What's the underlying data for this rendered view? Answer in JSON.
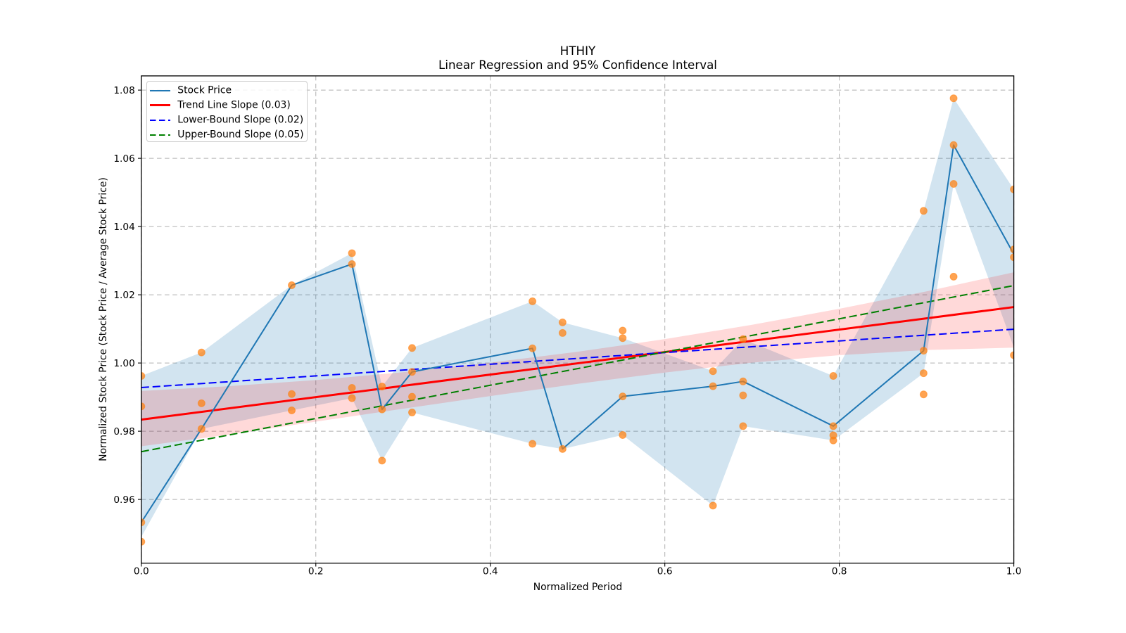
{
  "chart_data": {
    "type": "line",
    "title": "HTHIY",
    "subtitle": "Linear Regression and 95% Confidence Interval",
    "xlabel": "Normalized Period",
    "ylabel": "Normalized Stock Price (Stock Price / Average Stock Price)",
    "xlim": [
      0.0,
      1.0
    ],
    "ylim": [
      0.94132,
      1.08417
    ],
    "xticks": [
      "0.0",
      "0.2",
      "0.4",
      "0.6",
      "0.8",
      "1.0"
    ],
    "xtick_values": [
      0.0,
      0.2,
      0.4,
      0.6,
      0.8,
      1.0
    ],
    "yticks": [
      "0.96",
      "0.98",
      "1.00",
      "1.02",
      "1.04",
      "1.06",
      "1.08"
    ],
    "ytick_values": [
      0.96,
      0.98,
      1.0,
      1.02,
      1.04,
      1.06,
      1.08
    ],
    "grid": true,
    "grid_color": "#b0b0b0",
    "legend_position": "upper left",
    "x": [
      0.0,
      0.069,
      0.1724,
      0.2414,
      0.2759,
      0.3103,
      0.4483,
      0.4828,
      0.5517,
      0.6552,
      0.6897,
      0.7931,
      0.8966,
      0.931,
      1.0
    ],
    "series": [
      {
        "name": "Stock Price",
        "style": "solid",
        "color": "#1f77b4",
        "linewidth": 2,
        "y": [
          0.9533,
          0.9807,
          1.0228,
          1.029,
          0.9864,
          0.9974,
          1.0043,
          0.9748,
          0.9902,
          0.9932,
          0.9946,
          0.9815,
          1.0036,
          1.0639,
          1.0319
        ]
      },
      {
        "name": "Trend Line Slope (0.03)",
        "style": "solid",
        "color": "#ff0000",
        "linewidth": 3,
        "x2": [
          0.0,
          1.0
        ],
        "y2": [
          0.9834,
          1.0164
        ]
      },
      {
        "name": "Lower-Bound Slope (0.02)",
        "style": "dashed",
        "color": "#0000ff",
        "linewidth": 2,
        "x2": [
          0.0,
          1.0
        ],
        "y2": [
          0.9928,
          1.0099
        ]
      },
      {
        "name": "Upper-Bound Slope (0.05)",
        "style": "dashed",
        "color": "#008000",
        "linewidth": 2,
        "x2": [
          0.0,
          1.0
        ],
        "y2": [
          0.974,
          1.0227
        ]
      }
    ],
    "scatter": {
      "color": "#ff7f0e",
      "alpha": 0.72,
      "radius": 5.5,
      "points": [
        [
          0.0,
          0.9962
        ],
        [
          0.0,
          0.9873
        ],
        [
          0.0,
          0.9533
        ],
        [
          0.0,
          0.9476
        ],
        [
          0.069,
          1.0031
        ],
        [
          0.069,
          0.9882
        ],
        [
          0.069,
          0.9807
        ],
        [
          0.1724,
          1.0228
        ],
        [
          0.1724,
          0.9909
        ],
        [
          0.1724,
          0.9861
        ],
        [
          0.2414,
          1.0322
        ],
        [
          0.2414,
          1.029
        ],
        [
          0.2414,
          0.9927
        ],
        [
          0.2414,
          0.9897
        ],
        [
          0.2759,
          0.9931
        ],
        [
          0.2759,
          0.9864
        ],
        [
          0.2759,
          0.9714
        ],
        [
          0.3103,
          1.0044
        ],
        [
          0.3103,
          0.9974
        ],
        [
          0.3103,
          0.9901
        ],
        [
          0.3103,
          0.9855
        ],
        [
          0.4483,
          1.0181
        ],
        [
          0.4483,
          1.0043
        ],
        [
          0.4483,
          0.9763
        ],
        [
          0.4828,
          1.0119
        ],
        [
          0.4828,
          1.0088
        ],
        [
          0.4828,
          0.9748
        ],
        [
          0.5517,
          1.0095
        ],
        [
          0.5517,
          1.0073
        ],
        [
          0.5517,
          0.9902
        ],
        [
          0.5517,
          0.9789
        ],
        [
          0.6552,
          0.9976
        ],
        [
          0.6552,
          0.9932
        ],
        [
          0.6552,
          0.9582
        ],
        [
          0.6897,
          1.007
        ],
        [
          0.6897,
          0.9946
        ],
        [
          0.6897,
          0.9905
        ],
        [
          0.6897,
          0.9815
        ],
        [
          0.7931,
          0.9962
        ],
        [
          0.7931,
          0.9815
        ],
        [
          0.7931,
          0.9788
        ],
        [
          0.7931,
          0.9773
        ],
        [
          0.8966,
          1.0446
        ],
        [
          0.8966,
          1.0036
        ],
        [
          0.8966,
          0.997
        ],
        [
          0.8966,
          0.9908
        ],
        [
          0.931,
          1.0776
        ],
        [
          0.931,
          1.0639
        ],
        [
          0.931,
          1.0525
        ],
        [
          0.931,
          1.0253
        ],
        [
          1.0,
          1.0509
        ],
        [
          1.0,
          1.0333
        ],
        [
          1.0,
          1.031
        ],
        [
          1.0,
          1.0023
        ]
      ]
    },
    "bands": [
      {
        "name": "price-range-band",
        "color": "#1f77b4",
        "alpha": 0.2,
        "x": [
          0.0,
          0.069,
          0.1724,
          0.2414,
          0.2759,
          0.3103,
          0.4483,
          0.4828,
          0.5517,
          0.6552,
          0.6897,
          0.7931,
          0.8966,
          0.931,
          1.0
        ],
        "upper": [
          0.9962,
          1.0031,
          1.0228,
          1.0322,
          0.9931,
          1.0044,
          1.0181,
          1.0119,
          1.0073,
          0.9976,
          1.007,
          0.9962,
          1.0446,
          1.0776,
          1.0509
        ],
        "lower": [
          0.949,
          0.9807,
          0.9861,
          0.9897,
          0.9714,
          0.9855,
          0.9763,
          0.9748,
          0.9789,
          0.9582,
          0.9815,
          0.9773,
          0.997,
          1.0525,
          1.0046
        ]
      },
      {
        "name": "confidence-band",
        "color": "#ff0000",
        "alpha": 0.15,
        "x": [
          0.0,
          0.1,
          0.2,
          0.3,
          0.4,
          0.5,
          0.6,
          0.7,
          0.8,
          0.9,
          1.0
        ],
        "upper": [
          0.9918,
          0.9932,
          0.995,
          0.9973,
          1.0001,
          1.0033,
          1.007,
          1.0112,
          1.0159,
          1.021,
          1.0266
        ],
        "lower": [
          0.9756,
          0.979,
          0.9828,
          0.9866,
          0.9903,
          0.9939,
          0.9972,
          1.0001,
          1.0023,
          1.0038,
          1.0045
        ]
      }
    ]
  },
  "legend": {
    "items": [
      {
        "label": "Stock Price",
        "color": "#1f77b4",
        "style": "solid",
        "linewidth": 2
      },
      {
        "label": "Trend Line Slope (0.03)",
        "color": "#ff0000",
        "style": "solid",
        "linewidth": 3
      },
      {
        "label": "Lower-Bound Slope (0.02)",
        "color": "#0000ff",
        "style": "dashed",
        "linewidth": 2
      },
      {
        "label": "Upper-Bound Slope (0.05)",
        "color": "#008000",
        "style": "dashed",
        "linewidth": 2
      }
    ]
  }
}
